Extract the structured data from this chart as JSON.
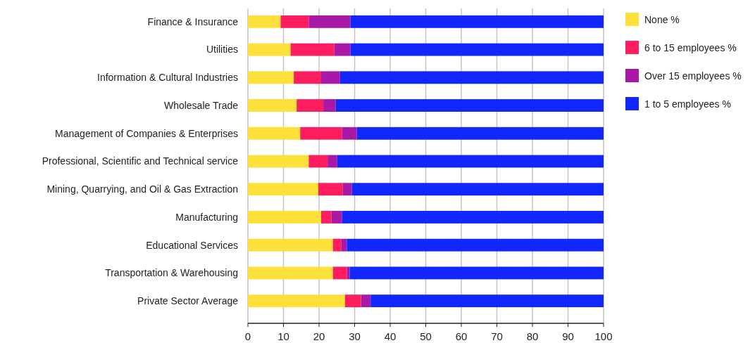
{
  "chart_data": {
    "type": "bar",
    "orientation": "horizontal",
    "stacked": true,
    "categories": [
      "Finance & Insurance",
      "Utilities",
      "Information & Cultural Industries",
      "Wholesale Trade",
      "Management of Companies & Enterprises",
      "Professional, Scientific and Technical service",
      "Mining, Quarrying, and Oil & Gas Extraction",
      "Manufacturing",
      "Educational Services",
      "Transportation & Warehousing",
      "Private Sector Average"
    ],
    "series": [
      {
        "name": "None %",
        "color": "#fde13a",
        "values": [
          9.2,
          12.0,
          12.9,
          13.7,
          14.7,
          17.1,
          19.8,
          20.6,
          23.9,
          23.9,
          27.3
        ]
      },
      {
        "name": "6 to 15 employees %",
        "color": "#fe1e5f",
        "values": [
          7.9,
          12.3,
          7.7,
          7.5,
          11.8,
          5.3,
          6.9,
          2.9,
          2.4,
          3.9,
          4.5
        ]
      },
      {
        "name": "Over 15 employees %",
        "color": "#aa18a8",
        "values": [
          11.7,
          4.5,
          5.3,
          3.5,
          4.1,
          2.7,
          2.5,
          3.0,
          1.5,
          0.8,
          2.7
        ]
      },
      {
        "name": "1 to 5 employees %",
        "color": "#1127fe",
        "values": [
          71.2,
          71.2,
          74.1,
          75.3,
          69.4,
          74.9,
          70.8,
          73.5,
          72.2,
          71.4,
          65.5
        ]
      }
    ],
    "xlim": [
      0,
      100
    ],
    "xticks": [
      0,
      10,
      20,
      30,
      40,
      50,
      60,
      70,
      80,
      90,
      100
    ],
    "grid": "x",
    "legend": "right"
  }
}
